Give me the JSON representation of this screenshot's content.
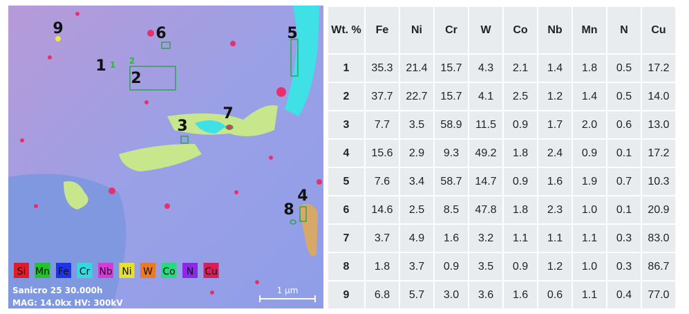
{
  "image": {
    "markers": [
      "9",
      "6",
      "5",
      "1",
      "2",
      "3",
      "7",
      "4",
      "8"
    ],
    "small_markers": [
      "1",
      "2"
    ],
    "legend": [
      {
        "label": "Si",
        "color": "#e01b2a"
      },
      {
        "label": "Mn",
        "color": "#22c22a"
      },
      {
        "label": "Fe",
        "color": "#1e35e6"
      },
      {
        "label": "Cr",
        "color": "#34d8e0"
      },
      {
        "label": "Nb",
        "color": "#d83ad8"
      },
      {
        "label": "Ni",
        "color": "#e8e02a"
      },
      {
        "label": "W",
        "color": "#ec7a20"
      },
      {
        "label": "Co",
        "color": "#2ad880"
      },
      {
        "label": "N",
        "color": "#8a2ae6"
      },
      {
        "label": "Cu",
        "color": "#d81e5a"
      }
    ],
    "info": [
      "Sanicro 25 30.000h",
      "MAG: 14.0kx HV: 300kV"
    ],
    "scale_bar": "1 μm"
  },
  "table": {
    "header": [
      "Wt. %",
      "Fe",
      "Ni",
      "Cr",
      "W",
      "Co",
      "Nb",
      "Mn",
      "N",
      "Cu"
    ],
    "rows": [
      [
        "1",
        "35.3",
        "21.4",
        "15.7",
        "4.3",
        "2.1",
        "1.4",
        "1.8",
        "0.5",
        "17.2"
      ],
      [
        "2",
        "37.7",
        "22.7",
        "15.7",
        "4.1",
        "2.5",
        "1.2",
        "1.4",
        "0.5",
        "14.0"
      ],
      [
        "3",
        "7.7",
        "3.5",
        "58.9",
        "11.5",
        "0.9",
        "1.7",
        "2.0",
        "0.6",
        "13.0"
      ],
      [
        "4",
        "15.6",
        "2.9",
        "9.3",
        "49.2",
        "1.8",
        "2.4",
        "0.9",
        "0.1",
        "17.2"
      ],
      [
        "5",
        "7.6",
        "3.4",
        "58.7",
        "14.7",
        "0.9",
        "1.6",
        "1.9",
        "0.7",
        "10.3"
      ],
      [
        "6",
        "14.6",
        "2.5",
        "8.5",
        "47.8",
        "1.8",
        "2.3",
        "1.0",
        "0.1",
        "20.9"
      ],
      [
        "7",
        "3.7",
        "4.9",
        "1.6",
        "3.2",
        "1.1",
        "1.1",
        "1.1",
        "0.3",
        "83.0"
      ],
      [
        "8",
        "1.8",
        "3.7",
        "0.9",
        "3.5",
        "0.9",
        "1.2",
        "1.0",
        "0.3",
        "86.7"
      ],
      [
        "9",
        "6.8",
        "5.7",
        "3.0",
        "3.6",
        "1.6",
        "0.6",
        "1.1",
        "0.4",
        "77.0"
      ]
    ]
  }
}
